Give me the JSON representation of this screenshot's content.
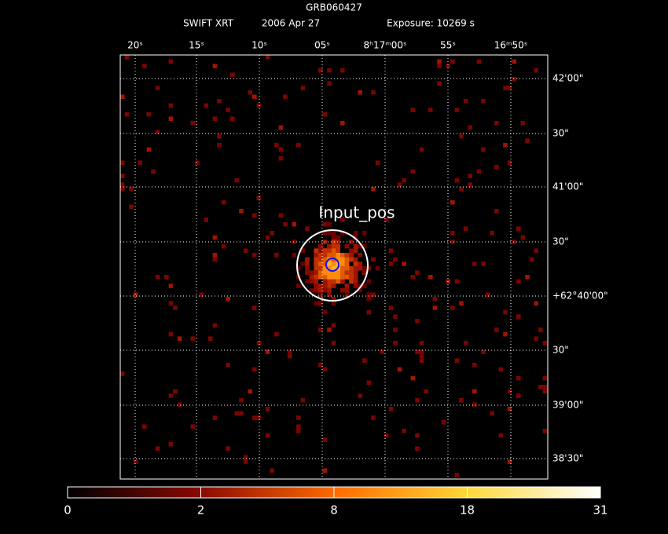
{
  "header": {
    "title": "GRB060427",
    "instrument": "SWIFT XRT",
    "date": "2006 Apr 27",
    "exposure": "Exposure: 10269 s"
  },
  "top_axis": {
    "labels": [
      "20ˢ",
      "15ˢ",
      "10ˢ",
      "05ˢ",
      "8ʰ17ᵐ00ˢ",
      "55ˢ",
      "16ᵐ50ˢ"
    ]
  },
  "right_axis": {
    "labels": [
      "42'00\"",
      "30\"",
      "41'00\"",
      "30\"",
      "+62°40'00\"",
      "30\"",
      "39'00\"",
      "38'30\""
    ]
  },
  "annotation": "Input_pos",
  "colorbar": {
    "ticks": [
      0,
      2,
      8,
      18,
      31
    ]
  }
}
